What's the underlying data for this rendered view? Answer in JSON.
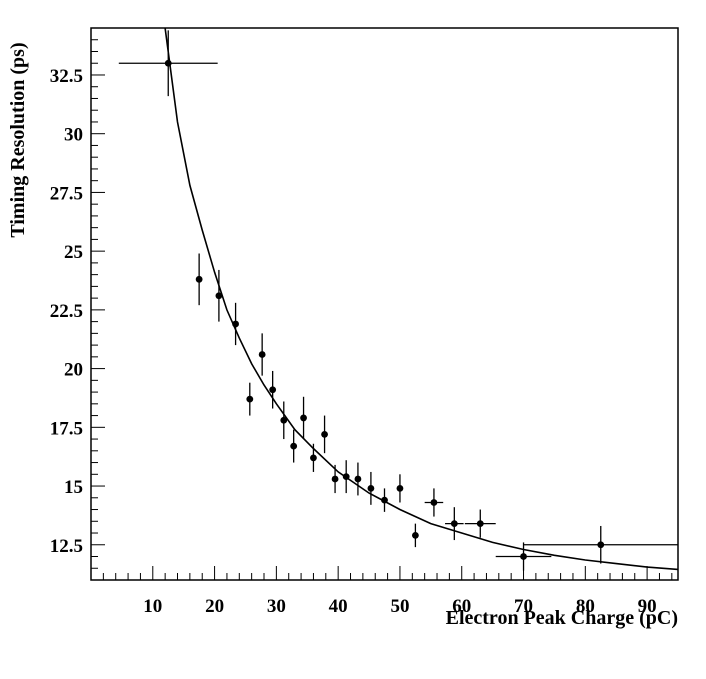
{
  "chart_data": {
    "type": "scatter",
    "title": "",
    "xlabel": "Electron Peak Charge (pC)",
    "ylabel": "Timing Resolution (ps)",
    "xlim": [
      0,
      95
    ],
    "ylim": [
      11,
      34.5
    ],
    "x_ticks": [
      10,
      20,
      30,
      40,
      50,
      60,
      70,
      80,
      90
    ],
    "y_ticks": [
      12.5,
      15,
      17.5,
      20,
      22.5,
      25,
      27.5,
      30,
      32.5
    ],
    "y_tick_labels": [
      "12.5",
      "15",
      "17.5",
      "20",
      "22.5",
      "25",
      "27.5",
      "30",
      "32.5"
    ],
    "grid": false,
    "points": [
      {
        "x": 12.5,
        "y": 33.0,
        "xerr": [
          8.0,
          8.0
        ],
        "yerr": 1.4
      },
      {
        "x": 17.5,
        "y": 23.8,
        "xerr": [
          0,
          0
        ],
        "yerr": 1.1
      },
      {
        "x": 20.7,
        "y": 23.1,
        "xerr": [
          0,
          0
        ],
        "yerr": 1.1
      },
      {
        "x": 23.4,
        "y": 21.9,
        "xerr": [
          0,
          0
        ],
        "yerr": 0.9
      },
      {
        "x": 25.7,
        "y": 18.7,
        "xerr": [
          0,
          0
        ],
        "yerr": 0.7
      },
      {
        "x": 27.7,
        "y": 20.6,
        "xerr": [
          0,
          0
        ],
        "yerr": 0.9
      },
      {
        "x": 29.4,
        "y": 19.1,
        "xerr": [
          0,
          0
        ],
        "yerr": 0.8
      },
      {
        "x": 31.2,
        "y": 17.8,
        "xerr": [
          0,
          0
        ],
        "yerr": 0.8
      },
      {
        "x": 32.8,
        "y": 16.7,
        "xerr": [
          0,
          0
        ],
        "yerr": 0.7
      },
      {
        "x": 34.4,
        "y": 17.9,
        "xerr": [
          0,
          0
        ],
        "yerr": 0.9
      },
      {
        "x": 36.0,
        "y": 16.2,
        "xerr": [
          0,
          0
        ],
        "yerr": 0.6
      },
      {
        "x": 37.8,
        "y": 17.2,
        "xerr": [
          0,
          0
        ],
        "yerr": 0.8
      },
      {
        "x": 39.5,
        "y": 15.3,
        "xerr": [
          0,
          0
        ],
        "yerr": 0.6
      },
      {
        "x": 41.3,
        "y": 15.4,
        "xerr": [
          0,
          0
        ],
        "yerr": 0.7
      },
      {
        "x": 43.2,
        "y": 15.3,
        "xerr": [
          0,
          0
        ],
        "yerr": 0.7
      },
      {
        "x": 45.3,
        "y": 14.9,
        "xerr": [
          0,
          0
        ],
        "yerr": 0.7
      },
      {
        "x": 47.5,
        "y": 14.4,
        "xerr": [
          0,
          0
        ],
        "yerr": 0.5
      },
      {
        "x": 50.0,
        "y": 14.9,
        "xerr": [
          0,
          0
        ],
        "yerr": 0.6
      },
      {
        "x": 52.5,
        "y": 12.9,
        "xerr": [
          0,
          0
        ],
        "yerr": 0.5
      },
      {
        "x": 55.5,
        "y": 14.3,
        "xerr": [
          1.5,
          1.5
        ],
        "yerr": 0.6
      },
      {
        "x": 58.8,
        "y": 13.4,
        "xerr": [
          1.5,
          1.5
        ],
        "yerr": 0.7
      },
      {
        "x": 63.0,
        "y": 13.4,
        "xerr": [
          2.5,
          2.5
        ],
        "yerr": 0.6
      },
      {
        "x": 70.0,
        "y": 12.0,
        "xerr": [
          4.5,
          4.5
        ],
        "yerr": 0.6
      },
      {
        "x": 82.5,
        "y": 12.5,
        "xerr": [
          12.5,
          12.5
        ],
        "yerr": 0.8
      }
    ],
    "fit_curve": {
      "x": [
        12,
        14,
        16,
        18,
        20,
        22,
        24,
        26,
        28,
        30,
        33,
        36,
        40,
        45,
        50,
        55,
        60,
        65,
        70,
        75,
        80,
        85,
        90,
        95
      ],
      "y": [
        34.5,
        30.5,
        27.8,
        25.9,
        24.1,
        22.5,
        21.3,
        20.2,
        19.3,
        18.5,
        17.4,
        16.6,
        15.6,
        14.7,
        14.0,
        13.4,
        13.0,
        12.6,
        12.3,
        12.05,
        11.85,
        11.7,
        11.55,
        11.45
      ]
    }
  }
}
